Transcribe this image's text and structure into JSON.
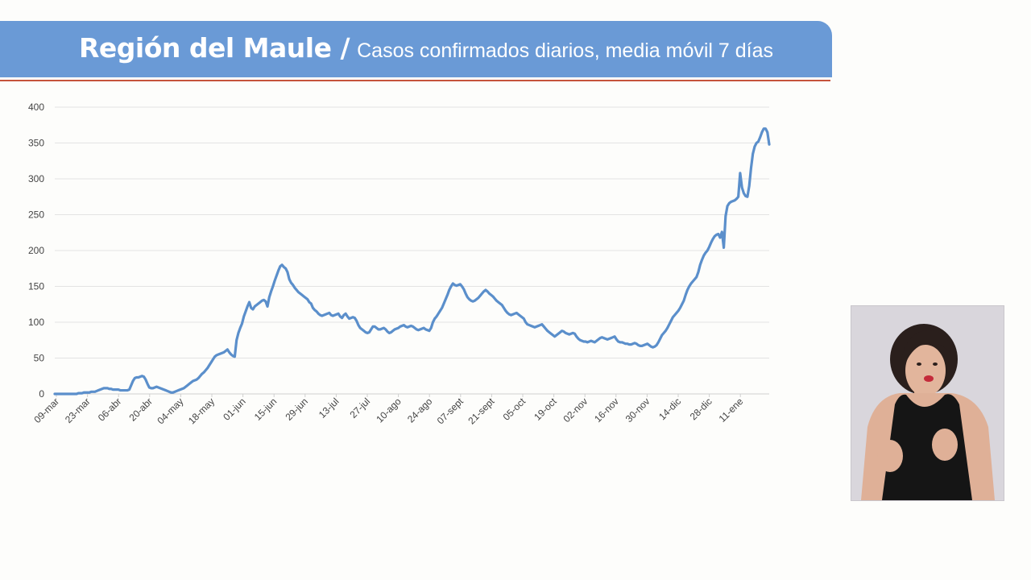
{
  "header": {
    "region": "Región del Maule /",
    "subtitle": "Casos confirmados diarios, media móvil 7 días"
  },
  "colors": {
    "header_bg": "#6a9ad6",
    "header_rule": "#c6533b",
    "series": "#5b8fcb",
    "grid": "#e3e3e3"
  },
  "chart_data": {
    "type": "line",
    "title": "",
    "xlabel": "",
    "ylabel": "",
    "ylim": [
      0,
      400
    ],
    "yticks": [
      0,
      50,
      100,
      150,
      200,
      250,
      300,
      350,
      400
    ],
    "grid": true,
    "legend": "none",
    "xtick_labels": [
      "09-mar",
      "23-mar",
      "06-abr",
      "20-abr",
      "04-may",
      "18-may",
      "01-jun",
      "15-jun",
      "29-jun",
      "13-jul",
      "27-jul",
      "10-ago",
      "24-ago",
      "07-sept",
      "21-sept",
      "05-oct",
      "19-oct",
      "02-nov",
      "16-nov",
      "30-nov",
      "14-dic",
      "28-dic",
      "11-ene"
    ],
    "series": [
      {
        "values": [
          0,
          0,
          0,
          0,
          0,
          0,
          0,
          0,
          0,
          0,
          0,
          0,
          0,
          1,
          1,
          1,
          2,
          2,
          2,
          2,
          3,
          3,
          3,
          4,
          5,
          6,
          7,
          8,
          8,
          8,
          7,
          7,
          6,
          6,
          6,
          6,
          5,
          5,
          5,
          5,
          5,
          6,
          12,
          18,
          22,
          23,
          23,
          24,
          25,
          24,
          20,
          14,
          9,
          8,
          8,
          9,
          10,
          9,
          8,
          7,
          6,
          5,
          4,
          3,
          2,
          2,
          3,
          4,
          5,
          6,
          7,
          8,
          10,
          12,
          14,
          16,
          18,
          19,
          20,
          22,
          25,
          28,
          30,
          33,
          36,
          40,
          44,
          48,
          52,
          54,
          55,
          56,
          57,
          58,
          60,
          62,
          58,
          55,
          53,
          52,
          75,
          85,
          92,
          98,
          108,
          115,
          122,
          128,
          120,
          118,
          122,
          124,
          126,
          128,
          130,
          131,
          129,
          122,
          135,
          143,
          150,
          158,
          165,
          172,
          178,
          180,
          177,
          175,
          170,
          160,
          155,
          152,
          148,
          145,
          142,
          140,
          138,
          136,
          134,
          132,
          128,
          126,
          120,
          117,
          115,
          112,
          110,
          109,
          110,
          111,
          112,
          113,
          110,
          109,
          110,
          111,
          112,
          108,
          106,
          110,
          112,
          108,
          105,
          106,
          107,
          106,
          102,
          96,
          92,
          90,
          88,
          86,
          85,
          86,
          90,
          94,
          94,
          92,
          90,
          90,
          91,
          92,
          90,
          87,
          85,
          86,
          88,
          90,
          91,
          92,
          94,
          95,
          96,
          94,
          93,
          94,
          95,
          94,
          92,
          90,
          89,
          90,
          91,
          92,
          90,
          89,
          88,
          92,
          100,
          105,
          108,
          112,
          116,
          120,
          126,
          132,
          138,
          145,
          150,
          154,
          152,
          151,
          152,
          153,
          150,
          146,
          140,
          135,
          132,
          130,
          129,
          130,
          132,
          134,
          137,
          140,
          143,
          145,
          143,
          140,
          138,
          136,
          133,
          130,
          128,
          126,
          124,
          120,
          116,
          113,
          111,
          110,
          111,
          112,
          113,
          111,
          109,
          107,
          105,
          100,
          97,
          96,
          95,
          94,
          93,
          94,
          95,
          96,
          97,
          94,
          91,
          88,
          86,
          84,
          82,
          80,
          82,
          84,
          86,
          88,
          87,
          85,
          84,
          83,
          84,
          85,
          84,
          80,
          77,
          75,
          74,
          73,
          73,
          72,
          73,
          74,
          73,
          72,
          74,
          76,
          78,
          79,
          78,
          77,
          76,
          77,
          78,
          79,
          80,
          76,
          73,
          72,
          72,
          71,
          70,
          70,
          69,
          69,
          70,
          71,
          70,
          68,
          67,
          67,
          68,
          69,
          70,
          68,
          66,
          65,
          66,
          68,
          72,
          77,
          82,
          85,
          88,
          92,
          97,
          102,
          107,
          110,
          113,
          116,
          120,
          125,
          130,
          138,
          145,
          150,
          154,
          157,
          160,
          163,
          170,
          180,
          187,
          193,
          197,
          200,
          205,
          211,
          216,
          220,
          222,
          223,
          218,
          226,
          204,
          248,
          262,
          266,
          268,
          269,
          270,
          272,
          275,
          308,
          288,
          280,
          276,
          275,
          290,
          315,
          335,
          345,
          350,
          352,
          358,
          365,
          370,
          370,
          365,
          348
        ]
      }
    ]
  }
}
